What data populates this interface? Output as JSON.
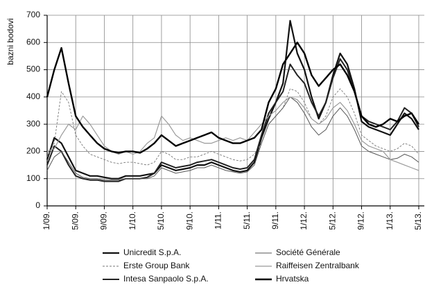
{
  "chart_data": {
    "type": "line",
    "y_label": "bazni bodovi",
    "categories": [
      "1/09.",
      null,
      null,
      null,
      "5/09.",
      null,
      null,
      null,
      "9/09.",
      null,
      null,
      null,
      "1/10.",
      null,
      null,
      null,
      "5/10.",
      null,
      null,
      null,
      "9/10.",
      null,
      null,
      null,
      "1/11.",
      null,
      null,
      null,
      "5/11.",
      null,
      null,
      null,
      "9/11.",
      null,
      null,
      null,
      "1/12.",
      null,
      null,
      null,
      "5/12.",
      null,
      null,
      null,
      "9/12.",
      null,
      null,
      null,
      "1/13.",
      null,
      null,
      null,
      "5/13."
    ],
    "ylim": [
      0,
      700
    ],
    "yticks": [
      0,
      100,
      200,
      300,
      400,
      500,
      600,
      700
    ],
    "grid": true,
    "series": [
      {
        "name": "Unicredit S.p.A.",
        "color": "#111111",
        "values": [
          170,
          250,
          230,
          180,
          130,
          120,
          110,
          110,
          105,
          100,
          100,
          110,
          110,
          110,
          115,
          120,
          150,
          140,
          130,
          135,
          140,
          150,
          150,
          160,
          150,
          140,
          130,
          125,
          130,
          160,
          250,
          320,
          380,
          450,
          680,
          560,
          500,
          400,
          320,
          380,
          480,
          560,
          520,
          430,
          310,
          290,
          280,
          270,
          260,
          300,
          340,
          320,
          280
        ]
      },
      {
        "name": "Erste Group Bank",
        "color": "#777777",
        "values": [
          180,
          230,
          420,
          380,
          260,
          220,
          190,
          180,
          170,
          160,
          155,
          160,
          160,
          155,
          150,
          160,
          200,
          190,
          170,
          170,
          180,
          180,
          190,
          200,
          190,
          180,
          170,
          165,
          170,
          190,
          230,
          300,
          330,
          360,
          430,
          420,
          380,
          320,
          300,
          330,
          400,
          430,
          400,
          340,
          260,
          240,
          220,
          210,
          200,
          210,
          230,
          220,
          190
        ]
      },
      {
        "name": "Intesa Sanpaolo S.p.A.",
        "color": "#222222",
        "values": [
          150,
          220,
          200,
          150,
          110,
          100,
          95,
          95,
          90,
          90,
          90,
          100,
          100,
          100,
          105,
          120,
          160,
          150,
          140,
          145,
          150,
          160,
          165,
          170,
          160,
          150,
          140,
          135,
          140,
          170,
          260,
          340,
          380,
          420,
          520,
          480,
          450,
          380,
          330,
          380,
          470,
          540,
          500,
          420,
          330,
          310,
          300,
          290,
          280,
          310,
          360,
          340,
          290
        ]
      },
      {
        "name": "Société Générale",
        "color": "#555555",
        "values": [
          130,
          180,
          200,
          160,
          120,
          105,
          100,
          100,
          95,
          95,
          95,
          100,
          100,
          100,
          100,
          110,
          140,
          130,
          120,
          125,
          130,
          140,
          140,
          150,
          140,
          130,
          125,
          120,
          125,
          150,
          230,
          300,
          330,
          360,
          400,
          380,
          340,
          290,
          260,
          280,
          330,
          360,
          330,
          280,
          220,
          200,
          190,
          180,
          170,
          175,
          190,
          180,
          160
        ]
      },
      {
        "name": "Raiffeisen Zentralbank",
        "color": "#999999",
        "values": [
          200,
          210,
          260,
          300,
          280,
          330,
          300,
          260,
          220,
          200,
          190,
          200,
          190,
          200,
          230,
          250,
          330,
          300,
          260,
          240,
          250,
          240,
          230,
          230,
          240,
          250,
          240,
          250,
          240,
          270,
          300,
          330,
          350,
          380,
          400,
          390,
          360,
          320,
          300,
          320,
          360,
          380,
          350,
          300,
          240,
          220,
          210,
          200,
          170,
          160,
          150,
          140,
          130
        ]
      },
      {
        "name": "Hrvatska",
        "color": "#000000",
        "values": [
          400,
          500,
          580,
          450,
          330,
          290,
          260,
          230,
          210,
          200,
          195,
          200,
          200,
          195,
          210,
          230,
          260,
          240,
          220,
          230,
          240,
          250,
          260,
          270,
          250,
          240,
          230,
          230,
          240,
          250,
          280,
          380,
          430,
          520,
          560,
          600,
          560,
          480,
          440,
          470,
          500,
          520,
          480,
          420,
          330,
          300,
          290,
          300,
          320,
          310,
          330,
          340,
          300
        ]
      }
    ]
  }
}
